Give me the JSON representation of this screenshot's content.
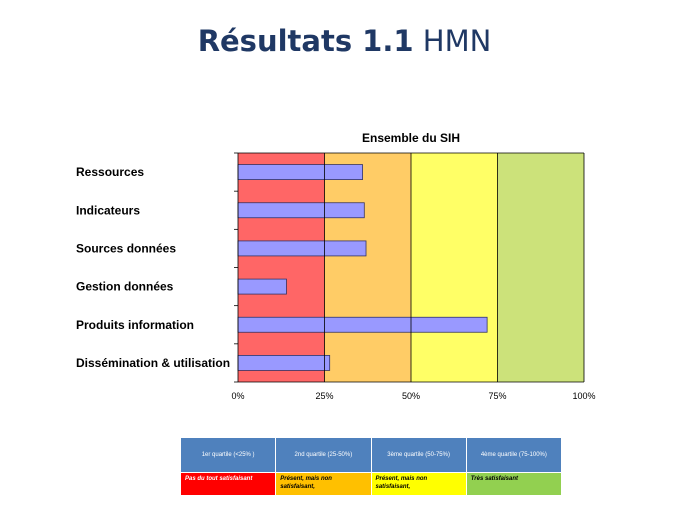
{
  "slide": {
    "title_bold": "Résultats  1.1",
    "title_rest": " HMN"
  },
  "chart_data": {
    "type": "bar",
    "orientation": "horizontal",
    "title": "Ensemble du SIH",
    "categories": [
      "Ressources",
      "Indicateurs",
      "Sources données",
      "Gestion données",
      "Produits information",
      "Dissémination & utilisation"
    ],
    "values": [
      36,
      36.5,
      37,
      14,
      72,
      26.5
    ],
    "xlim": [
      0,
      100
    ],
    "xticks": [
      "0%",
      "25%",
      "50%",
      "75%",
      "100%"
    ],
    "bar_color": "#9999FF",
    "bands": [
      {
        "from": 0,
        "to": 25,
        "color": "#FF6666"
      },
      {
        "from": 25,
        "to": 50,
        "color": "#FFCC66"
      },
      {
        "from": 50,
        "to": 75,
        "color": "#FFFF66"
      },
      {
        "from": 75,
        "to": 100,
        "color": "#CCE27A"
      }
    ]
  },
  "legend": {
    "headers": [
      "1er quartile (<25% )",
      "2nd quartile (25-50%)",
      "3ème quartile (50-75%)",
      "4ème quartile (75-100%)"
    ],
    "descriptions": [
      "Pas du tout satisfaisant",
      "Présent, mais non satisfaisant,",
      "Présent, mais non satisfaisant,",
      "Très satisfaisant"
    ]
  }
}
